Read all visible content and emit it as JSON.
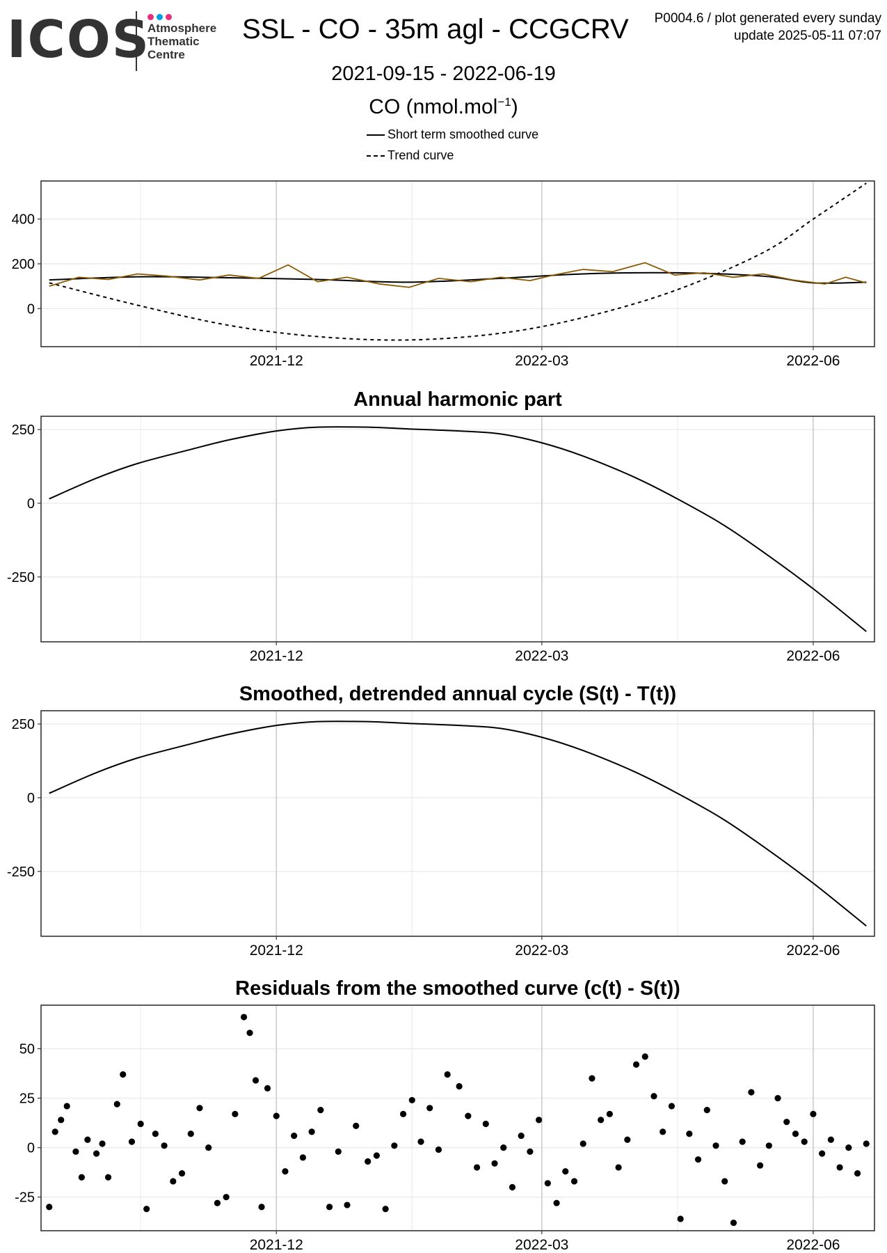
{
  "header": {
    "logo_text": "ICOS",
    "logo_sub": [
      "Atmosphere",
      "Thematic",
      "Centre"
    ],
    "logo_dot_colors": [
      "#e5317d",
      "#00a0e3",
      "#e5317d"
    ],
    "title": "SSL - CO - 35m agl - CCGCRV",
    "corner_note_1": "P0004.6 / plot generated every sunday",
    "corner_note_2": "update  2025-05-11 07:07",
    "date_range": "2021-09-15 - 2022-06-19",
    "unit_main": "CO (nmol.mol",
    "unit_sup": "−1",
    "unit_close": ")"
  },
  "legend": [
    {
      "label": "Short term smoothed curve",
      "style": "solid"
    },
    {
      "label": "Trend curve",
      "style": "dashed"
    }
  ],
  "colors": {
    "observations": "#8b5a00",
    "curve": "#000000",
    "grid_major": "#cccccc",
    "grid_minor": "#ebebeb",
    "frame": "#333333"
  },
  "chart_data": [
    {
      "type": "line",
      "title": "",
      "x_range": [
        "2021-09-15",
        "2022-06-19"
      ],
      "x_ticks": [
        "2021-12",
        "2022-03",
        "2022-06"
      ],
      "ylim": [
        -170,
        570
      ],
      "y_ticks": [
        0,
        200,
        400
      ],
      "series": [
        {
          "name": "Short term smoothed curve",
          "style": "solid",
          "x": [
            "2021-09-15",
            "2021-10-15",
            "2021-11-15",
            "2021-12-15",
            "2022-01-15",
            "2022-02-15",
            "2022-03-15",
            "2022-04-15",
            "2022-05-15",
            "2022-06-01",
            "2022-06-19"
          ],
          "y": [
            128,
            142,
            138,
            130,
            118,
            135,
            155,
            160,
            145,
            115,
            118
          ]
        },
        {
          "name": "Trend curve",
          "style": "dashed",
          "x": [
            "2021-09-15",
            "2021-10-15",
            "2021-11-15",
            "2021-12-15",
            "2022-01-15",
            "2022-02-15",
            "2022-03-15",
            "2022-04-15",
            "2022-05-15",
            "2022-06-01",
            "2022-06-19"
          ],
          "y": [
            115,
            15,
            -75,
            -125,
            -140,
            -110,
            -40,
            80,
            250,
            400,
            560
          ]
        },
        {
          "name": "",
          "style": "observations",
          "x": [
            "2021-09-15",
            "2021-09-25",
            "2021-10-05",
            "2021-10-15",
            "2021-10-25",
            "2021-11-05",
            "2021-11-15",
            "2021-11-25",
            "2021-12-05",
            "2021-12-15",
            "2021-12-25",
            "2022-01-05",
            "2022-01-15",
            "2022-01-25",
            "2022-02-05",
            "2022-02-15",
            "2022-02-25",
            "2022-03-05",
            "2022-03-15",
            "2022-03-25",
            "2022-04-05",
            "2022-04-15",
            "2022-04-25",
            "2022-05-05",
            "2022-05-15",
            "2022-05-25",
            "2022-06-05",
            "2022-06-12",
            "2022-06-19"
          ],
          "y": [
            100,
            140,
            130,
            155,
            145,
            128,
            150,
            135,
            195,
            120,
            140,
            110,
            95,
            135,
            120,
            140,
            125,
            150,
            175,
            165,
            205,
            150,
            160,
            140,
            155,
            128,
            110,
            140,
            115
          ]
        }
      ]
    },
    {
      "type": "line",
      "title": "Annual harmonic part",
      "x_range": [
        "2021-09-15",
        "2022-06-19"
      ],
      "x_ticks": [
        "2021-12",
        "2022-03",
        "2022-06"
      ],
      "ylim": [
        -470,
        295
      ],
      "y_ticks": [
        -250,
        0,
        250
      ],
      "series": [
        {
          "name": "",
          "x": [
            "2021-09-15",
            "2021-10-01",
            "2021-10-15",
            "2021-11-01",
            "2021-11-15",
            "2021-12-01",
            "2021-12-15",
            "2022-01-01",
            "2022-01-15",
            "2022-02-01",
            "2022-02-15",
            "2022-03-01",
            "2022-03-15",
            "2022-04-01",
            "2022-04-15",
            "2022-05-01",
            "2022-05-15",
            "2022-06-01",
            "2022-06-19"
          ],
          "y": [
            15,
            85,
            135,
            180,
            215,
            245,
            258,
            258,
            252,
            245,
            235,
            205,
            160,
            90,
            20,
            -70,
            -165,
            -290,
            -435
          ]
        }
      ]
    },
    {
      "type": "line",
      "title": "Smoothed, detrended annual cycle (S(t) - T(t))",
      "x_range": [
        "2021-09-15",
        "2022-06-19"
      ],
      "x_ticks": [
        "2021-12",
        "2022-03",
        "2022-06"
      ],
      "ylim": [
        -470,
        295
      ],
      "y_ticks": [
        -250,
        0,
        250
      ],
      "series": [
        {
          "name": "",
          "x": [
            "2021-09-15",
            "2021-10-01",
            "2021-10-15",
            "2021-11-01",
            "2021-11-15",
            "2021-12-01",
            "2021-12-15",
            "2022-01-01",
            "2022-01-15",
            "2022-02-01",
            "2022-02-15",
            "2022-03-01",
            "2022-03-15",
            "2022-04-01",
            "2022-04-15",
            "2022-05-01",
            "2022-05-15",
            "2022-06-01",
            "2022-06-19"
          ],
          "y": [
            15,
            85,
            135,
            180,
            215,
            245,
            258,
            258,
            252,
            245,
            235,
            205,
            160,
            90,
            20,
            -70,
            -165,
            -290,
            -435
          ]
        }
      ]
    },
    {
      "type": "scatter",
      "title": "Residuals from the smoothed curve (c(t) - S(t))",
      "x_range": [
        "2021-09-15",
        "2022-06-19"
      ],
      "x_ticks": [
        "2021-12",
        "2022-03",
        "2022-06"
      ],
      "ylim": [
        -42,
        72
      ],
      "y_ticks": [
        -25,
        0,
        25,
        50
      ],
      "series": [
        {
          "name": "",
          "x": [
            "2021-09-15",
            "2021-09-17",
            "2021-09-19",
            "2021-09-21",
            "2021-09-24",
            "2021-09-26",
            "2021-09-28",
            "2021-10-01",
            "2021-10-03",
            "2021-10-05",
            "2021-10-08",
            "2021-10-10",
            "2021-10-13",
            "2021-10-16",
            "2021-10-18",
            "2021-10-21",
            "2021-10-24",
            "2021-10-27",
            "2021-10-30",
            "2021-11-02",
            "2021-11-05",
            "2021-11-08",
            "2021-11-11",
            "2021-11-14",
            "2021-11-17",
            "2021-11-20",
            "2021-11-22",
            "2021-11-24",
            "2021-11-26",
            "2021-11-28",
            "2021-12-01",
            "2021-12-04",
            "2021-12-07",
            "2021-12-10",
            "2021-12-13",
            "2021-12-16",
            "2021-12-19",
            "2021-12-22",
            "2021-12-25",
            "2021-12-28",
            "2022-01-01",
            "2022-01-04",
            "2022-01-07",
            "2022-01-10",
            "2022-01-13",
            "2022-01-16",
            "2022-01-19",
            "2022-01-22",
            "2022-01-25",
            "2022-01-28",
            "2022-02-01",
            "2022-02-04",
            "2022-02-07",
            "2022-02-10",
            "2022-02-13",
            "2022-02-16",
            "2022-02-19",
            "2022-02-22",
            "2022-02-25",
            "2022-02-28",
            "2022-03-03",
            "2022-03-06",
            "2022-03-09",
            "2022-03-12",
            "2022-03-15",
            "2022-03-18",
            "2022-03-21",
            "2022-03-24",
            "2022-03-27",
            "2022-03-30",
            "2022-04-02",
            "2022-04-05",
            "2022-04-08",
            "2022-04-11",
            "2022-04-14",
            "2022-04-17",
            "2022-04-20",
            "2022-04-23",
            "2022-04-26",
            "2022-04-29",
            "2022-05-02",
            "2022-05-05",
            "2022-05-08",
            "2022-05-11",
            "2022-05-14",
            "2022-05-17",
            "2022-05-20",
            "2022-05-23",
            "2022-05-26",
            "2022-05-29",
            "2022-06-01",
            "2022-06-04",
            "2022-06-07",
            "2022-06-10",
            "2022-06-13",
            "2022-06-16",
            "2022-06-19"
          ],
          "y": [
            -30,
            8,
            14,
            21,
            -2,
            -15,
            4,
            -3,
            2,
            -15,
            22,
            37,
            3,
            12,
            -31,
            7,
            1,
            -17,
            -13,
            7,
            20,
            0,
            -28,
            -25,
            17,
            66,
            58,
            34,
            -30,
            30,
            16,
            -12,
            6,
            -5,
            8,
            19,
            -30,
            -2,
            -29,
            11,
            -7,
            -4,
            -31,
            1,
            17,
            24,
            3,
            20,
            -1,
            37,
            31,
            16,
            -10,
            12,
            -8,
            0,
            -20,
            6,
            -2,
            14,
            -18,
            -28,
            -12,
            -17,
            2,
            35,
            14,
            17,
            -10,
            4,
            42,
            46,
            26,
            8,
            21,
            -36,
            7,
            -6,
            19,
            1,
            -17,
            -38,
            3,
            28,
            -9,
            1,
            25,
            13,
            7,
            3,
            17,
            -3,
            4,
            -10,
            0,
            -13,
            2
          ]
        }
      ]
    }
  ]
}
